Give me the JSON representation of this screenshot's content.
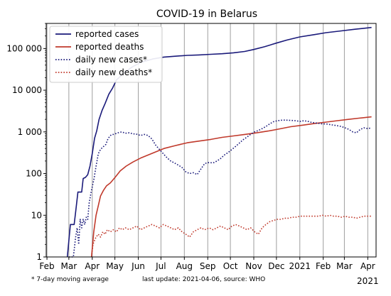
{
  "chart_data": {
    "type": "line",
    "title": "COVID-19 in Belarus",
    "xlabel": "",
    "ylabel": "",
    "yscale": "log",
    "ylim": [
      1,
      400000
    ],
    "xlim": [
      "2020-01-31",
      "2021-04-12"
    ],
    "grid": "x-monthly",
    "legend_position": "top-left",
    "y_ticks": [
      1,
      10,
      100,
      1000,
      10000,
      100000
    ],
    "y_tick_labels": [
      "1",
      "10",
      "100",
      "1 000",
      "10 000",
      "100 000"
    ],
    "x_ticks": [
      {
        "date": "2020-02-01",
        "label": "Feb"
      },
      {
        "date": "2020-03-01",
        "label": "Mar"
      },
      {
        "date": "2020-04-01",
        "label": "Apr"
      },
      {
        "date": "2020-05-01",
        "label": "May"
      },
      {
        "date": "2020-06-01",
        "label": "Jun"
      },
      {
        "date": "2020-07-01",
        "label": "Jul"
      },
      {
        "date": "2020-08-01",
        "label": "Aug"
      },
      {
        "date": "2020-09-01",
        "label": "Sep"
      },
      {
        "date": "2020-10-01",
        "label": "Oct"
      },
      {
        "date": "2020-11-01",
        "label": "Nov"
      },
      {
        "date": "2020-12-01",
        "label": "Dec"
      },
      {
        "date": "2021-01-01",
        "label": "2021"
      },
      {
        "date": "2021-02-01",
        "label": "Feb"
      },
      {
        "date": "2021-03-01",
        "label": "Mar"
      },
      {
        "date": "2021-04-01",
        "label": "Apr"
      }
    ],
    "year_label": "2021",
    "footnote": "* 7-day moving average",
    "source_note": "last update: 2021-04-06, source: WHO",
    "series": [
      {
        "name": "reported cases",
        "color": "#1a1a7a",
        "style": "solid",
        "points": [
          [
            "2020-02-28",
            1
          ],
          [
            "2020-03-03",
            6
          ],
          [
            "2020-03-08",
            6
          ],
          [
            "2020-03-10",
            12
          ],
          [
            "2020-03-13",
            36
          ],
          [
            "2020-03-18",
            36
          ],
          [
            "2020-03-20",
            76
          ],
          [
            "2020-03-23",
            81
          ],
          [
            "2020-03-26",
            94
          ],
          [
            "2020-03-29",
            152
          ],
          [
            "2020-04-01",
            304
          ],
          [
            "2020-04-04",
            700
          ],
          [
            "2020-04-07",
            1066
          ],
          [
            "2020-04-10",
            1981
          ],
          [
            "2020-04-14",
            3281
          ],
          [
            "2020-04-18",
            4779
          ],
          [
            "2020-04-23",
            8022
          ],
          [
            "2020-04-28",
            11289
          ],
          [
            "2020-05-03",
            17489
          ],
          [
            "2020-05-09",
            22052
          ],
          [
            "2020-05-16",
            28681
          ],
          [
            "2020-05-25",
            37144
          ],
          [
            "2020-06-05",
            46868
          ],
          [
            "2020-06-20",
            56032
          ],
          [
            "2020-07-05",
            62424
          ],
          [
            "2020-07-20",
            65443
          ],
          [
            "2020-08-05",
            68503
          ],
          [
            "2020-08-20",
            70130
          ],
          [
            "2020-09-05",
            72553
          ],
          [
            "2020-09-20",
            75000
          ],
          [
            "2020-10-05",
            79000
          ],
          [
            "2020-10-20",
            85000
          ],
          [
            "2020-11-01",
            95000
          ],
          [
            "2020-11-15",
            110000
          ],
          [
            "2020-12-01",
            135000
          ],
          [
            "2020-12-15",
            160000
          ],
          [
            "2021-01-01",
            190000
          ],
          [
            "2021-01-20",
            215000
          ],
          [
            "2021-02-05",
            240000
          ],
          [
            "2021-02-25",
            265000
          ],
          [
            "2021-03-15",
            290000
          ],
          [
            "2021-04-06",
            320000
          ]
        ]
      },
      {
        "name": "reported deaths",
        "color": "#c0392b",
        "style": "solid",
        "points": [
          [
            "2020-03-31",
            1
          ],
          [
            "2020-04-03",
            4
          ],
          [
            "2020-04-06",
            10
          ],
          [
            "2020-04-09",
            17
          ],
          [
            "2020-04-12",
            29
          ],
          [
            "2020-04-16",
            40
          ],
          [
            "2020-04-20",
            51
          ],
          [
            "2020-04-25",
            60
          ],
          [
            "2020-05-01",
            80
          ],
          [
            "2020-05-08",
            116
          ],
          [
            "2020-05-16",
            151
          ],
          [
            "2020-05-25",
            190
          ],
          [
            "2020-06-05",
            240
          ],
          [
            "2020-06-20",
            310
          ],
          [
            "2020-07-05",
            400
          ],
          [
            "2020-07-20",
            470
          ],
          [
            "2020-08-05",
            550
          ],
          [
            "2020-08-20",
            600
          ],
          [
            "2020-09-05",
            660
          ],
          [
            "2020-09-20",
            740
          ],
          [
            "2020-10-05",
            800
          ],
          [
            "2020-10-20",
            870
          ],
          [
            "2020-11-05",
            950
          ],
          [
            "2020-11-20",
            1050
          ],
          [
            "2020-12-05",
            1180
          ],
          [
            "2020-12-20",
            1330
          ],
          [
            "2021-01-05",
            1450
          ],
          [
            "2021-01-20",
            1580
          ],
          [
            "2021-02-05",
            1720
          ],
          [
            "2021-02-20",
            1860
          ],
          [
            "2021-03-05",
            1990
          ],
          [
            "2021-03-20",
            2130
          ],
          [
            "2021-04-06",
            2300
          ]
        ]
      },
      {
        "name": "daily new cases*",
        "color": "#1a1a7a",
        "style": "dotted",
        "points": [
          [
            "2020-03-01",
            1
          ],
          [
            "2020-03-07",
            1
          ],
          [
            "2020-03-10",
            3
          ],
          [
            "2020-03-12",
            5
          ],
          [
            "2020-03-14",
            2
          ],
          [
            "2020-03-16",
            8
          ],
          [
            "2020-03-18",
            5
          ],
          [
            "2020-03-20",
            8
          ],
          [
            "2020-03-22",
            6
          ],
          [
            "2020-03-24",
            9
          ],
          [
            "2020-03-26",
            8
          ],
          [
            "2020-03-28",
            20
          ],
          [
            "2020-03-31",
            40
          ],
          [
            "2020-04-03",
            70
          ],
          [
            "2020-04-06",
            150
          ],
          [
            "2020-04-09",
            300
          ],
          [
            "2020-04-12",
            380
          ],
          [
            "2020-04-15",
            430
          ],
          [
            "2020-04-19",
            500
          ],
          [
            "2020-04-22",
            700
          ],
          [
            "2020-04-26",
            850
          ],
          [
            "2020-04-30",
            880
          ],
          [
            "2020-05-05",
            950
          ],
          [
            "2020-05-10",
            1000
          ],
          [
            "2020-05-15",
            930
          ],
          [
            "2020-05-20",
            950
          ],
          [
            "2020-05-25",
            900
          ],
          [
            "2020-05-30",
            880
          ],
          [
            "2020-06-04",
            820
          ],
          [
            "2020-06-09",
            870
          ],
          [
            "2020-06-14",
            820
          ],
          [
            "2020-06-19",
            680
          ],
          [
            "2020-06-24",
            480
          ],
          [
            "2020-06-29",
            380
          ],
          [
            "2020-07-04",
            300
          ],
          [
            "2020-07-09",
            240
          ],
          [
            "2020-07-14",
            200
          ],
          [
            "2020-07-19",
            180
          ],
          [
            "2020-07-24",
            160
          ],
          [
            "2020-07-29",
            140
          ],
          [
            "2020-08-03",
            110
          ],
          [
            "2020-08-08",
            100
          ],
          [
            "2020-08-13",
            105
          ],
          [
            "2020-08-18",
            95
          ],
          [
            "2020-08-23",
            130
          ],
          [
            "2020-08-28",
            175
          ],
          [
            "2020-09-03",
            185
          ],
          [
            "2020-09-08",
            180
          ],
          [
            "2020-09-13",
            200
          ],
          [
            "2020-09-18",
            230
          ],
          [
            "2020-09-23",
            280
          ],
          [
            "2020-09-28",
            320
          ],
          [
            "2020-10-03",
            380
          ],
          [
            "2020-10-08",
            450
          ],
          [
            "2020-10-13",
            540
          ],
          [
            "2020-10-18",
            650
          ],
          [
            "2020-10-23",
            750
          ],
          [
            "2020-10-28",
            880
          ],
          [
            "2020-11-02",
            1000
          ],
          [
            "2020-11-07",
            1080
          ],
          [
            "2020-11-12",
            1200
          ],
          [
            "2020-11-17",
            1350
          ],
          [
            "2020-11-22",
            1550
          ],
          [
            "2020-11-27",
            1750
          ],
          [
            "2020-12-02",
            1850
          ],
          [
            "2020-12-07",
            1900
          ],
          [
            "2020-12-12",
            1920
          ],
          [
            "2020-12-17",
            1900
          ],
          [
            "2020-12-22",
            1880
          ],
          [
            "2020-12-27",
            1850
          ],
          [
            "2021-01-01",
            1780
          ],
          [
            "2021-01-06",
            1850
          ],
          [
            "2021-01-11",
            1800
          ],
          [
            "2021-01-16",
            1700
          ],
          [
            "2021-01-21",
            1650
          ],
          [
            "2021-01-26",
            1600
          ],
          [
            "2021-01-31",
            1550
          ],
          [
            "2021-02-05",
            1550
          ],
          [
            "2021-02-10",
            1500
          ],
          [
            "2021-02-15",
            1450
          ],
          [
            "2021-02-20",
            1400
          ],
          [
            "2021-02-25",
            1350
          ],
          [
            "2021-03-02",
            1250
          ],
          [
            "2021-03-07",
            1150
          ],
          [
            "2021-03-12",
            1000
          ],
          [
            "2021-03-17",
            950
          ],
          [
            "2021-03-22",
            1150
          ],
          [
            "2021-03-27",
            1250
          ],
          [
            "2021-04-01",
            1200
          ],
          [
            "2021-04-06",
            1250
          ]
        ]
      },
      {
        "name": "daily new deaths*",
        "color": "#c0392b",
        "style": "dotted",
        "points": [
          [
            "2020-03-31",
            1
          ],
          [
            "2020-04-02",
            2
          ],
          [
            "2020-04-04",
            2.5
          ],
          [
            "2020-04-06",
            3
          ],
          [
            "2020-04-09",
            3.5
          ],
          [
            "2020-04-12",
            3
          ],
          [
            "2020-04-15",
            4
          ],
          [
            "2020-04-18",
            3.5
          ],
          [
            "2020-04-21",
            4.5
          ],
          [
            "2020-04-25",
            4
          ],
          [
            "2020-04-29",
            4.5
          ],
          [
            "2020-05-03",
            4
          ],
          [
            "2020-05-07",
            5
          ],
          [
            "2020-05-11",
            4.5
          ],
          [
            "2020-05-15",
            5
          ],
          [
            "2020-05-20",
            4.5
          ],
          [
            "2020-05-25",
            5
          ],
          [
            "2020-05-30",
            5.5
          ],
          [
            "2020-06-04",
            4.5
          ],
          [
            "2020-06-09",
            5
          ],
          [
            "2020-06-14",
            5.5
          ],
          [
            "2020-06-19",
            6
          ],
          [
            "2020-06-24",
            5.5
          ],
          [
            "2020-06-29",
            5
          ],
          [
            "2020-07-04",
            6
          ],
          [
            "2020-07-09",
            5.5
          ],
          [
            "2020-07-14",
            5
          ],
          [
            "2020-07-19",
            4.5
          ],
          [
            "2020-07-24",
            5
          ],
          [
            "2020-07-29",
            4
          ],
          [
            "2020-08-03",
            3.5
          ],
          [
            "2020-08-08",
            3
          ],
          [
            "2020-08-13",
            4
          ],
          [
            "2020-08-18",
            4.5
          ],
          [
            "2020-08-23",
            5
          ],
          [
            "2020-08-28",
            4.5
          ],
          [
            "2020-09-03",
            5
          ],
          [
            "2020-09-08",
            4.5
          ],
          [
            "2020-09-13",
            5
          ],
          [
            "2020-09-18",
            5.5
          ],
          [
            "2020-09-23",
            5
          ],
          [
            "2020-09-28",
            4.5
          ],
          [
            "2020-10-03",
            5.5
          ],
          [
            "2020-10-08",
            6
          ],
          [
            "2020-10-13",
            5.5
          ],
          [
            "2020-10-18",
            5
          ],
          [
            "2020-10-23",
            4.5
          ],
          [
            "2020-10-28",
            5
          ],
          [
            "2020-11-02",
            4
          ],
          [
            "2020-11-07",
            3.5
          ],
          [
            "2020-11-12",
            5
          ],
          [
            "2020-11-17",
            6
          ],
          [
            "2020-11-22",
            7
          ],
          [
            "2020-11-27",
            7.5
          ],
          [
            "2020-12-02",
            8
          ],
          [
            "2020-12-07",
            8
          ],
          [
            "2020-12-12",
            8.5
          ],
          [
            "2020-12-17",
            8.5
          ],
          [
            "2020-12-22",
            9
          ],
          [
            "2020-12-27",
            9
          ],
          [
            "2021-01-01",
            9.5
          ],
          [
            "2021-01-06",
            9.5
          ],
          [
            "2021-01-11",
            9.5
          ],
          [
            "2021-01-16",
            9.5
          ],
          [
            "2021-01-21",
            9.5
          ],
          [
            "2021-01-26",
            9.5
          ],
          [
            "2021-01-31",
            10
          ],
          [
            "2021-02-05",
            9.5
          ],
          [
            "2021-02-10",
            10
          ],
          [
            "2021-02-15",
            9.5
          ],
          [
            "2021-02-20",
            9.5
          ],
          [
            "2021-02-25",
            9
          ],
          [
            "2021-03-02",
            9.5
          ],
          [
            "2021-03-07",
            9
          ],
          [
            "2021-03-12",
            9
          ],
          [
            "2021-03-17",
            8.5
          ],
          [
            "2021-03-22",
            9
          ],
          [
            "2021-03-27",
            9.5
          ],
          [
            "2021-04-01",
            9.5
          ],
          [
            "2021-04-06",
            9.5
          ]
        ]
      }
    ]
  }
}
